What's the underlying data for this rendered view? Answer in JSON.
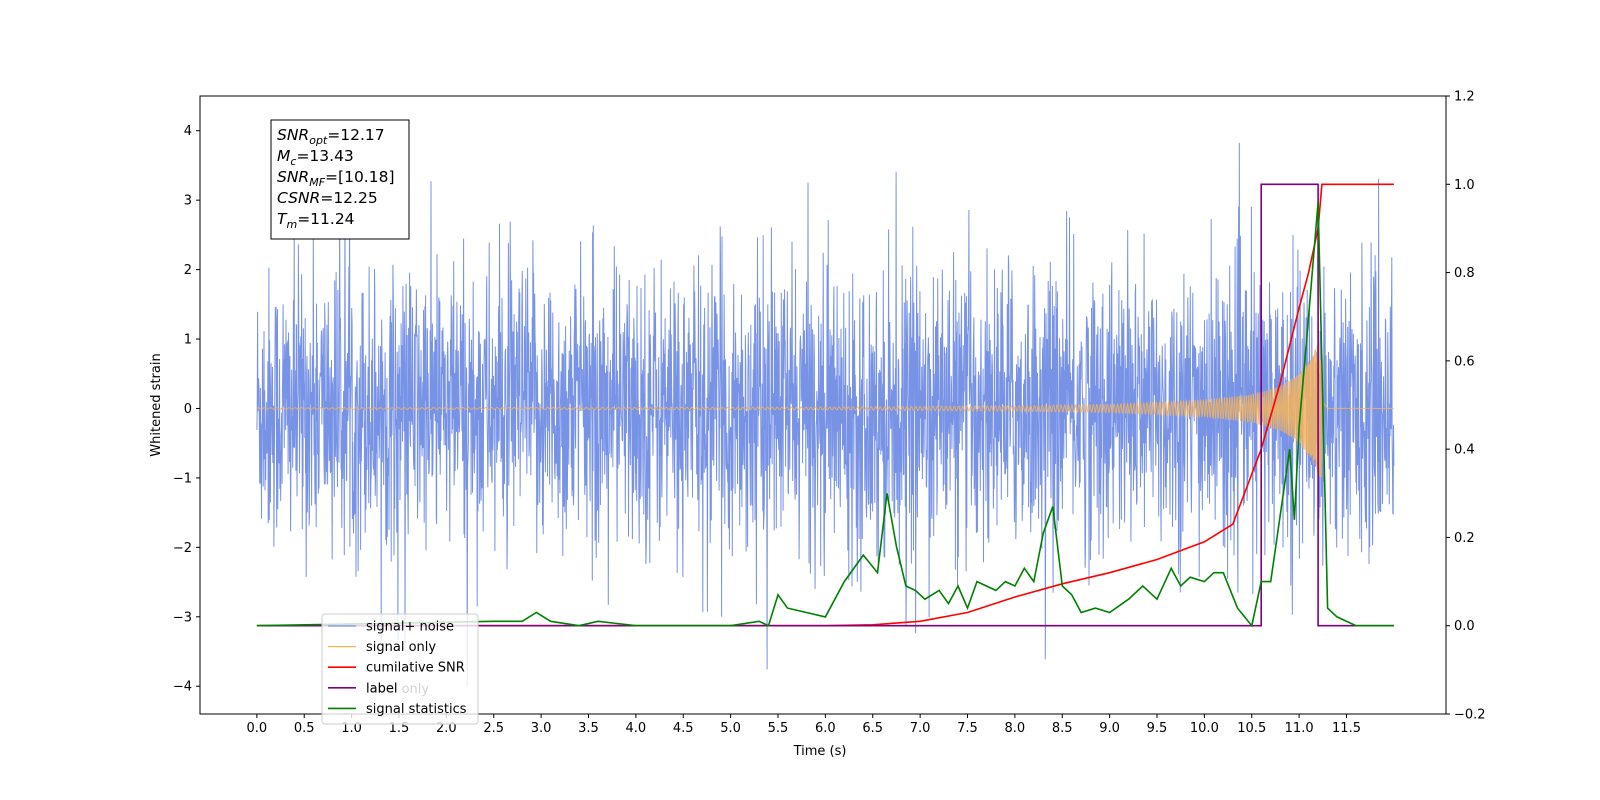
{
  "chart_data": {
    "type": "line",
    "xlabel": "Time (s)",
    "ylabel": "Whitened strain",
    "xlim": [
      -0.6,
      12.55
    ],
    "ylim": [
      -4.4,
      4.5
    ],
    "y2lim": [
      -0.2,
      1.2
    ],
    "x_ticks": [
      "0.0",
      "0.5",
      "1.0",
      "1.5",
      "2.0",
      "2.5",
      "3.0",
      "3.5",
      "4.0",
      "4.5",
      "5.0",
      "5.5",
      "6.0",
      "6.5",
      "7.0",
      "7.5",
      "8.0",
      "8.5",
      "9.0",
      "9.5",
      "10.0",
      "10.5",
      "11.0",
      "11.5"
    ],
    "y_ticks": [
      "4",
      "3",
      "2",
      "1",
      "0",
      "−1",
      "−2",
      "−3",
      "−4"
    ],
    "y2_ticks": [
      "1.2",
      "1.0",
      "0.8",
      "0.6",
      "0.4",
      "0.2",
      "0.0",
      "−0.2"
    ],
    "legend_position": "lower-left",
    "grid": false,
    "info_box": [
      {
        "sym": "SNR",
        "sub": "opt",
        "val": "=12.17"
      },
      {
        "sym": "M",
        "sub": "c",
        "val": "=13.43"
      },
      {
        "sym": "SNR",
        "sub": "MF",
        "val": "=[10.18]"
      },
      {
        "sym": "CSNR",
        "sub": "",
        "val": "=12.25"
      },
      {
        "sym": "T",
        "sub": "m",
        "val": "=11.24"
      }
    ],
    "series": [
      {
        "name": "signal+ noise",
        "axis": "left",
        "color": "#7893e6",
        "description": "noisy strain samples, approx. N(0,1) with outliers up to ±4",
        "x_range": [
          0.0,
          12.0
        ],
        "amplitude_range": [
          -4.0,
          4.1
        ]
      },
      {
        "name": "signal only",
        "axis": "left",
        "color": "#f5b35c",
        "description": "chirp waveform growing until merger at 11.24 s",
        "x_range": [
          0.0,
          12.0
        ],
        "envelope": {
          "x": [
            0.0,
            6.0,
            8.0,
            9.0,
            10.0,
            10.5,
            10.8,
            11.0,
            11.15,
            11.24,
            11.3,
            12.0
          ],
          "y": [
            0.01,
            0.02,
            0.04,
            0.06,
            0.12,
            0.2,
            0.32,
            0.5,
            0.8,
            1.05,
            0.02,
            0.0
          ]
        }
      },
      {
        "name": "cumilative SNR",
        "axis": "right",
        "color": "#ff0000",
        "x": [
          0.0,
          6.0,
          6.5,
          7.0,
          7.5,
          8.0,
          8.5,
          9.0,
          9.5,
          10.0,
          10.3,
          10.6,
          10.8,
          11.0,
          11.1,
          11.2,
          11.24,
          11.25,
          12.0
        ],
        "y": [
          0.0,
          0.0,
          0.002,
          0.01,
          0.03,
          0.065,
          0.095,
          0.12,
          0.15,
          0.19,
          0.23,
          0.4,
          0.55,
          0.72,
          0.8,
          0.9,
          1.0,
          1.0,
          1.0
        ]
      },
      {
        "name": "label",
        "axis": "right",
        "color": "#800080",
        "x": [
          0.0,
          10.6,
          10.6,
          11.2,
          11.2,
          12.0
        ],
        "y": [
          0.0,
          0.0,
          1.0,
          1.0,
          0.0,
          0.0
        ]
      },
      {
        "name": "label only",
        "axis": "right",
        "color": "#800080",
        "x": [],
        "y": []
      },
      {
        "name": "signal statistics",
        "axis": "right",
        "color": "#008000",
        "x": [
          0.0,
          2.5,
          2.8,
          2.95,
          3.1,
          3.4,
          3.6,
          3.8,
          4.0,
          4.5,
          5.0,
          5.3,
          5.4,
          5.5,
          5.6,
          5.8,
          6.0,
          6.2,
          6.4,
          6.55,
          6.65,
          6.75,
          6.85,
          6.95,
          7.05,
          7.2,
          7.3,
          7.4,
          7.5,
          7.6,
          7.7,
          7.8,
          7.9,
          8.0,
          8.1,
          8.2,
          8.3,
          8.4,
          8.5,
          8.6,
          8.7,
          8.85,
          9.0,
          9.2,
          9.35,
          9.5,
          9.65,
          9.75,
          9.85,
          10.0,
          10.1,
          10.2,
          10.35,
          10.5,
          10.6,
          10.7,
          10.8,
          10.9,
          10.95,
          11.0,
          11.1,
          11.2,
          11.3,
          11.4,
          11.6,
          11.8,
          12.0
        ],
        "y": [
          0.0,
          0.01,
          0.01,
          0.03,
          0.01,
          0.0,
          0.01,
          0.005,
          0.0,
          0.0,
          0.0,
          0.01,
          0.0,
          0.07,
          0.04,
          0.03,
          0.02,
          0.1,
          0.16,
          0.12,
          0.3,
          0.18,
          0.09,
          0.08,
          0.06,
          0.08,
          0.05,
          0.09,
          0.04,
          0.1,
          0.09,
          0.08,
          0.1,
          0.09,
          0.13,
          0.1,
          0.21,
          0.27,
          0.09,
          0.07,
          0.03,
          0.04,
          0.03,
          0.06,
          0.09,
          0.06,
          0.13,
          0.09,
          0.11,
          0.1,
          0.12,
          0.12,
          0.04,
          0.0,
          0.1,
          0.1,
          0.25,
          0.4,
          0.24,
          0.45,
          0.7,
          0.96,
          0.04,
          0.02,
          0.0,
          0.0,
          0.0
        ]
      }
    ]
  }
}
